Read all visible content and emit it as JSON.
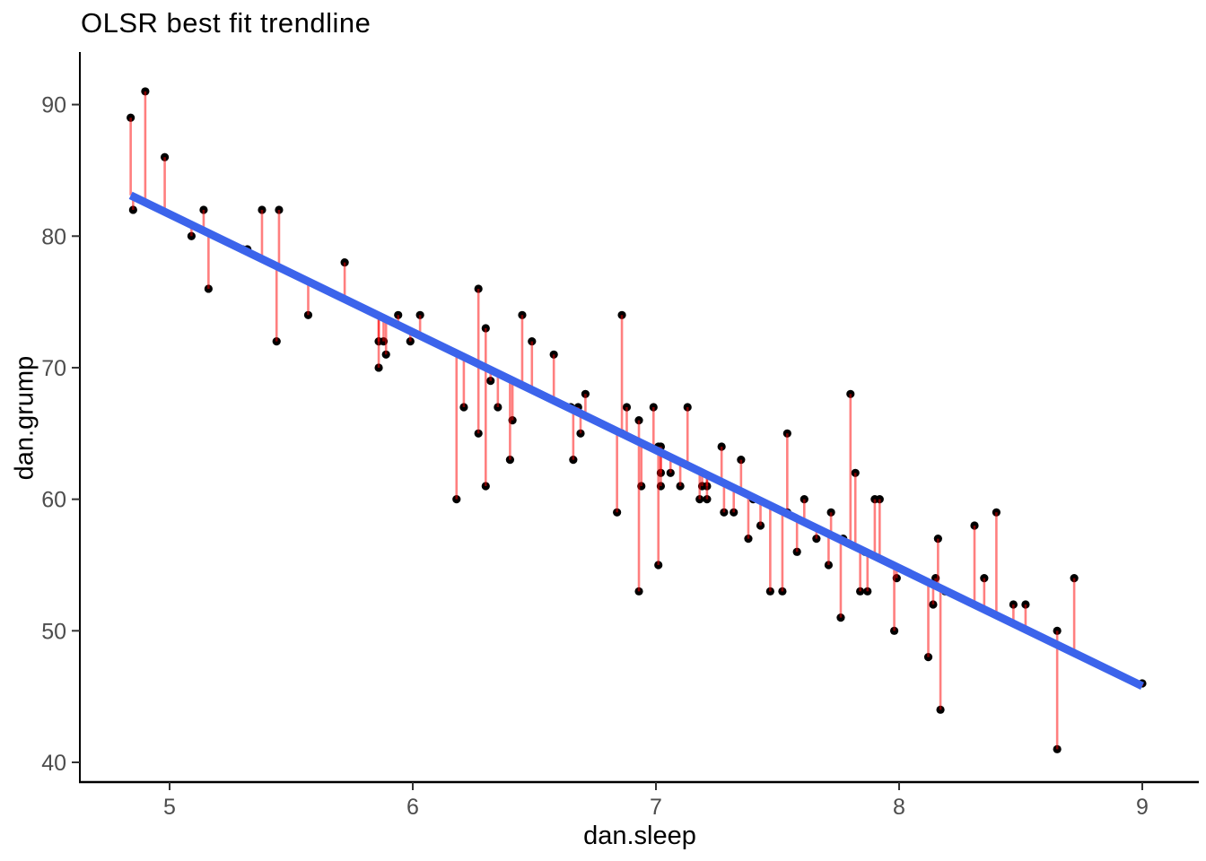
{
  "chart_data": {
    "type": "scatter",
    "title": "OLSR best fit trendline",
    "xlabel": "dan.sleep",
    "ylabel": "dan.grump",
    "x_ticks": [
      5,
      6,
      7,
      8,
      9
    ],
    "y_ticks": [
      40,
      50,
      60,
      70,
      80,
      90
    ],
    "xlim": [
      4.63,
      9.23
    ],
    "ylim": [
      38.4,
      94.0
    ],
    "grid": "off",
    "legend": "none",
    "point_color": "#000000",
    "residual_color": "rgba(255,0,0,0.5)",
    "trend_color": "#3C64EB",
    "axis_color": "#000000",
    "tick_label_color": "#4D4D4D",
    "trendline": {
      "kind": "ols-fit",
      "x1": 4.84,
      "y1": 83.1,
      "x2": 9.0,
      "y2": 45.8
    },
    "series": [
      {
        "name": "observations",
        "points": [
          [
            4.84,
            89
          ],
          [
            4.9,
            91
          ],
          [
            4.98,
            86
          ],
          [
            4.85,
            82
          ],
          [
            5.14,
            82
          ],
          [
            5.38,
            82
          ],
          [
            5.45,
            82
          ],
          [
            5.09,
            80
          ],
          [
            5.3,
            79
          ],
          [
            5.32,
            79
          ],
          [
            5.16,
            76
          ],
          [
            5.72,
            78
          ],
          [
            5.57,
            74
          ],
          [
            5.44,
            72
          ],
          [
            5.86,
            72
          ],
          [
            5.88,
            72
          ],
          [
            5.99,
            72
          ],
          [
            5.89,
            71
          ],
          [
            5.86,
            70
          ],
          [
            5.94,
            74
          ],
          [
            6.03,
            74
          ],
          [
            6.27,
            76
          ],
          [
            6.3,
            73
          ],
          [
            6.45,
            74
          ],
          [
            6.49,
            72
          ],
          [
            6.58,
            71
          ],
          [
            6.32,
            69
          ],
          [
            6.21,
            67
          ],
          [
            6.35,
            67
          ],
          [
            6.27,
            65
          ],
          [
            6.41,
            66
          ],
          [
            6.18,
            60
          ],
          [
            6.3,
            61
          ],
          [
            6.4,
            63
          ],
          [
            6.65,
            67
          ],
          [
            6.68,
            67
          ],
          [
            6.69,
            65
          ],
          [
            6.66,
            63
          ],
          [
            6.71,
            68
          ],
          [
            6.86,
            74
          ],
          [
            6.86,
            65
          ],
          [
            6.84,
            59
          ],
          [
            6.88,
            67
          ],
          [
            6.93,
            66
          ],
          [
            6.93,
            53
          ],
          [
            6.94,
            61
          ],
          [
            6.99,
            67
          ],
          [
            7.01,
            64
          ],
          [
            7.02,
            64
          ],
          [
            7.02,
            62
          ],
          [
            7.06,
            62
          ],
          [
            7.02,
            61
          ],
          [
            7.01,
            55
          ],
          [
            7.1,
            61
          ],
          [
            7.13,
            67
          ],
          [
            7.19,
            61
          ],
          [
            7.21,
            61
          ],
          [
            7.18,
            60
          ],
          [
            7.21,
            60
          ],
          [
            7.27,
            64
          ],
          [
            7.28,
            59
          ],
          [
            7.32,
            59
          ],
          [
            7.35,
            63
          ],
          [
            7.4,
            60
          ],
          [
            7.38,
            57
          ],
          [
            7.43,
            58
          ],
          [
            7.47,
            53
          ],
          [
            7.52,
            53
          ],
          [
            7.54,
            65
          ],
          [
            7.54,
            59
          ],
          [
            7.58,
            56
          ],
          [
            7.61,
            60
          ],
          [
            7.66,
            57
          ],
          [
            7.72,
            59
          ],
          [
            7.71,
            55
          ],
          [
            7.77,
            57
          ],
          [
            7.76,
            51
          ],
          [
            7.8,
            68
          ],
          [
            7.82,
            62
          ],
          [
            7.84,
            53
          ],
          [
            7.87,
            53
          ],
          [
            7.86,
            56
          ],
          [
            7.9,
            60
          ],
          [
            7.92,
            60
          ],
          [
            7.98,
            50
          ],
          [
            7.99,
            54
          ],
          [
            8.15,
            54
          ],
          [
            8.16,
            57
          ],
          [
            8.14,
            52
          ],
          [
            8.12,
            48
          ],
          [
            8.17,
            44
          ],
          [
            8.19,
            53
          ],
          [
            8.31,
            58
          ],
          [
            8.35,
            54
          ],
          [
            8.4,
            59
          ],
          [
            8.47,
            52
          ],
          [
            8.52,
            52
          ],
          [
            8.65,
            50
          ],
          [
            8.65,
            41
          ],
          [
            8.72,
            54
          ],
          [
            9.0,
            46
          ]
        ]
      }
    ]
  }
}
